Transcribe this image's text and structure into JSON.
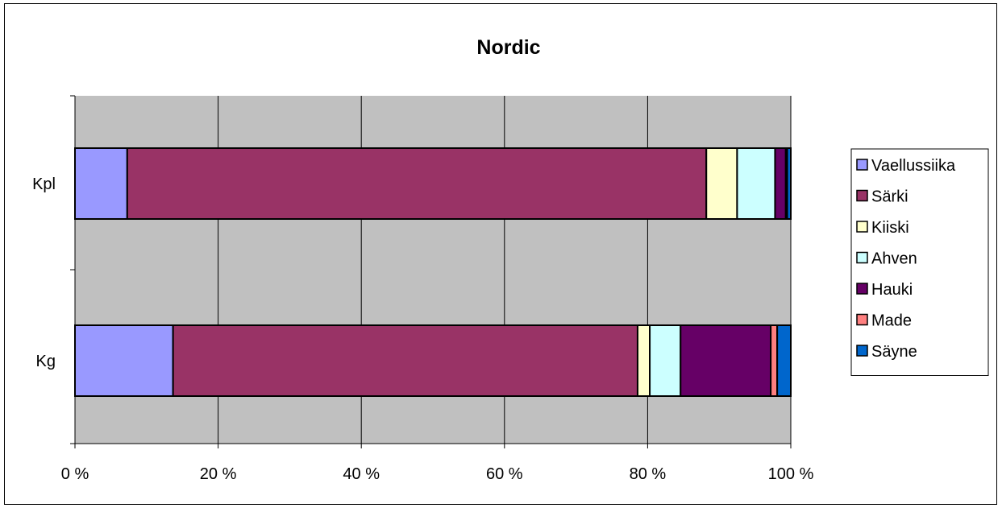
{
  "chart_data": {
    "type": "bar",
    "orientation": "horizontal",
    "stacking": "percent",
    "title": "Nordic",
    "xlabel": "",
    "ylabel": "",
    "xlim": [
      0,
      100
    ],
    "x_ticks": [
      "0 %",
      "20 %",
      "40 %",
      "60 %",
      "80 %",
      "100 %"
    ],
    "categories": [
      "Kpl",
      "Kg"
    ],
    "series": [
      {
        "name": "Vaellussiika",
        "color": "#9999ff",
        "values": [
          7.3,
          13.7
        ]
      },
      {
        "name": "Särki",
        "color": "#993366",
        "values": [
          80.9,
          64.9
        ]
      },
      {
        "name": "Kiiski",
        "color": "#ffffcc",
        "values": [
          4.3,
          1.7
        ]
      },
      {
        "name": "Ahven",
        "color": "#ccffff",
        "values": [
          5.3,
          4.3
        ]
      },
      {
        "name": "Hauki",
        "color": "#660066",
        "values": [
          1.5,
          12.6
        ]
      },
      {
        "name": "Made",
        "color": "#ff8080",
        "values": [
          0.2,
          0.9
        ]
      },
      {
        "name": "Säyne",
        "color": "#0066cc",
        "values": [
          0.5,
          1.9
        ]
      }
    ],
    "grid": true,
    "plot_background": "#c0c0c0",
    "legend_position": "right"
  }
}
